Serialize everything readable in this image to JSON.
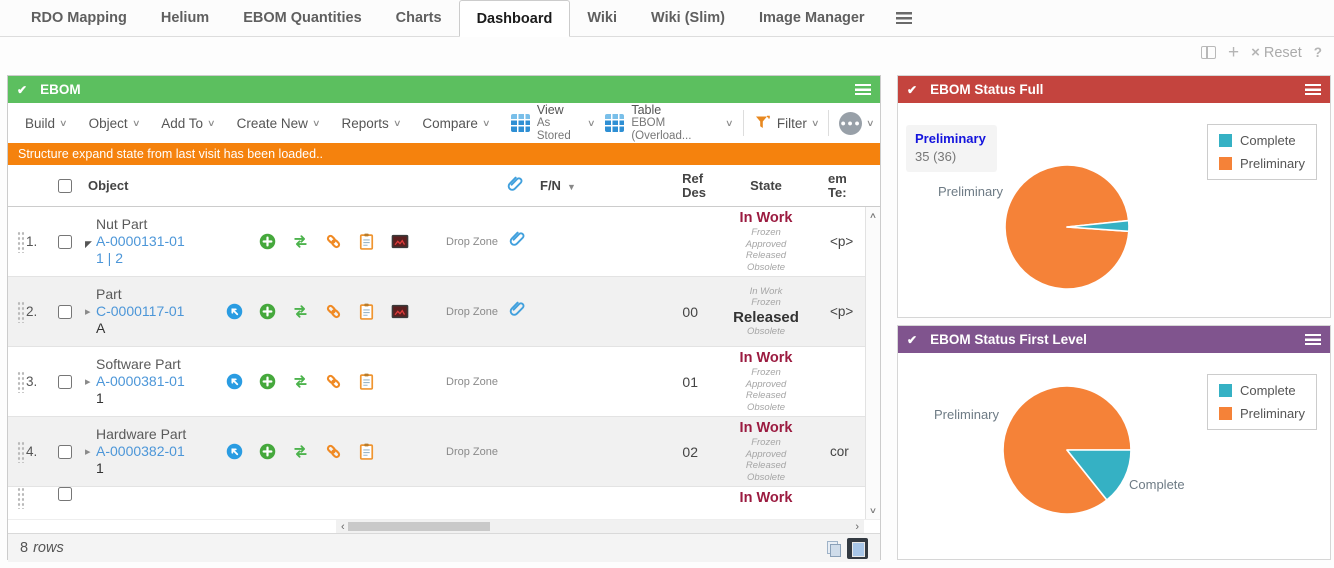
{
  "nav": {
    "tabs": [
      {
        "label": "RDO Mapping",
        "active": false
      },
      {
        "label": "Helium",
        "active": false
      },
      {
        "label": "EBOM Quantities",
        "active": false
      },
      {
        "label": "Charts",
        "active": false
      },
      {
        "label": "Dashboard",
        "active": true
      },
      {
        "label": "Wiki",
        "active": false
      },
      {
        "label": "Wiki (Slim)",
        "active": false
      },
      {
        "label": "Image Manager",
        "active": false
      }
    ]
  },
  "utility": {
    "add": "+",
    "reset_x": "×",
    "reset": "Reset",
    "help": "?"
  },
  "colors": {
    "panel_green": "#5cbf5f",
    "notice_orange": "#f5820d",
    "link_blue": "#4c96d8",
    "state_maroon": "#9b1b40",
    "complete_teal": "#35b1c4",
    "preliminary_orange": "#f58238"
  },
  "ebom": {
    "title": "EBOM",
    "toolbar": {
      "menus": [
        "Build",
        "Object",
        "Add To",
        "Create New",
        "Reports",
        "Compare"
      ],
      "view_label": "View",
      "view_value": "As Stored",
      "table_label": "Table",
      "table_value": "EBOM (Overload...",
      "filter_label": "Filter"
    },
    "notice": "Structure expand state from last visit has been loaded..",
    "header": {
      "object": "Object",
      "fn": "F/N",
      "ref_des_1": "Ref",
      "ref_des_2": "Des",
      "state": "State",
      "em_te_1": "em",
      "em_te_2": "Te:"
    },
    "rows": [
      {
        "num": "1.",
        "type": "Nut Part",
        "link": "A-0000131-01",
        "sub": "1 | 2",
        "sub_link": true,
        "expanded": true,
        "icons": [
          "spacer",
          "plus",
          "swap",
          "link",
          "clipboard",
          "image"
        ],
        "drop_zone": "Drop Zone",
        "attachment": true,
        "ref_des": "",
        "state": {
          "pre": [],
          "current": "In Work",
          "post": [
            "Frozen",
            "Approved",
            "Released",
            "Obsolete"
          ],
          "variant": "inwork"
        },
        "em_te": "<p>"
      },
      {
        "num": "2.",
        "type": "Part",
        "link": "C-0000117-01",
        "sub": "A",
        "sub_link": false,
        "expanded": false,
        "icons": [
          "nav",
          "plus",
          "swap",
          "link",
          "clipboard",
          "image"
        ],
        "drop_zone": "Drop Zone",
        "attachment": true,
        "ref_des": "00",
        "state": {
          "pre": [
            "In Work",
            "Frozen"
          ],
          "current": "Released",
          "post": [
            "Obsolete"
          ],
          "variant": "released"
        },
        "em_te": "<p>"
      },
      {
        "num": "3.",
        "type": "Software Part",
        "link": "A-0000381-01",
        "sub": "1",
        "sub_link": false,
        "expanded": false,
        "icons": [
          "nav",
          "plus",
          "swap",
          "link",
          "clipboard"
        ],
        "drop_zone": "Drop Zone",
        "attachment": false,
        "ref_des": "01",
        "state": {
          "pre": [],
          "current": "In Work",
          "post": [
            "Frozen",
            "Approved",
            "Released",
            "Obsolete"
          ],
          "variant": "inwork"
        },
        "em_te": ""
      },
      {
        "num": "4.",
        "type": "Hardware Part",
        "link": "A-0000382-01",
        "sub": "1",
        "sub_link": false,
        "expanded": false,
        "icons": [
          "nav",
          "plus",
          "swap",
          "link",
          "clipboard"
        ],
        "drop_zone": "Drop Zone",
        "attachment": false,
        "ref_des": "02",
        "state": {
          "pre": [],
          "current": "In Work",
          "post": [
            "Frozen",
            "Approved",
            "Released",
            "Obsolete"
          ],
          "variant": "inwork"
        },
        "em_te": "cor"
      }
    ],
    "partial_state": "In Work",
    "footer": {
      "count": "8",
      "unit": "rows"
    }
  },
  "panels": [
    {
      "title": "EBOM Status Full",
      "header_color": "#c4443e",
      "tooltip": {
        "title": "Preliminary",
        "value": "35 (36)"
      },
      "labels": {
        "left": "Preliminary"
      }
    },
    {
      "title": "EBOM Status First Level",
      "header_color": "#80548e",
      "labels": {
        "left": "Preliminary",
        "right": "Complete"
      }
    }
  ],
  "chart_data": [
    {
      "type": "pie",
      "title": "EBOM Status Full",
      "series": [
        {
          "name": "Complete",
          "value": 1
        },
        {
          "name": "Preliminary",
          "value": 35
        }
      ],
      "total": 36,
      "hover_value_label": "35 (36)",
      "colors": {
        "Complete": "#35b1c4",
        "Preliminary": "#f58238"
      },
      "start_angle_deg": 6,
      "clockwise": true,
      "legend_position": "top-right",
      "labels_shown": [
        "Preliminary"
      ]
    },
    {
      "type": "pie",
      "title": "EBOM Status First Level",
      "series": [
        {
          "name": "Complete",
          "value": 1
        },
        {
          "name": "Preliminary",
          "value": 6
        }
      ],
      "colors": {
        "Complete": "#35b1c4",
        "Preliminary": "#f58238"
      },
      "start_angle_deg": 0,
      "clockwise": true,
      "legend_position": "top-right",
      "labels_shown": [
        "Preliminary",
        "Complete"
      ]
    }
  ]
}
